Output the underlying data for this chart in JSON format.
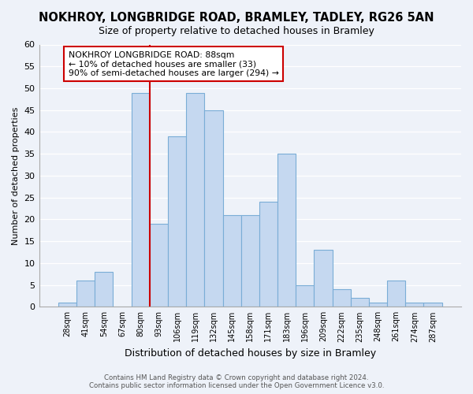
{
  "title": "NOKHROY, LONGBRIDGE ROAD, BRAMLEY, TADLEY, RG26 5AN",
  "subtitle": "Size of property relative to detached houses in Bramley",
  "xlabel": "Distribution of detached houses by size in Bramley",
  "ylabel": "Number of detached properties",
  "bar_labels": [
    "28sqm",
    "41sqm",
    "54sqm",
    "67sqm",
    "80sqm",
    "93sqm",
    "106sqm",
    "119sqm",
    "132sqm",
    "145sqm",
    "158sqm",
    "171sqm",
    "183sqm",
    "196sqm",
    "209sqm",
    "222sqm",
    "235sqm",
    "248sqm",
    "261sqm",
    "274sqm",
    "287sqm"
  ],
  "bar_values": [
    1,
    6,
    8,
    0,
    49,
    19,
    39,
    49,
    45,
    21,
    21,
    24,
    35,
    5,
    13,
    4,
    2,
    1,
    6,
    1,
    1
  ],
  "bar_color": "#c5d8f0",
  "bar_edge_color": "#7aadd6",
  "vline_x_idx": 4,
  "vline_color": "#cc0000",
  "annotation_title": "NOKHROY LONGBRIDGE ROAD: 88sqm",
  "annotation_line1": "← 10% of detached houses are smaller (33)",
  "annotation_line2": "90% of semi-detached houses are larger (294) →",
  "annotation_box_color": "#ffffff",
  "annotation_box_edge": "#cc0000",
  "ylim": [
    0,
    60
  ],
  "yticks": [
    0,
    5,
    10,
    15,
    20,
    25,
    30,
    35,
    40,
    45,
    50,
    55,
    60
  ],
  "footer1": "Contains HM Land Registry data © Crown copyright and database right 2024.",
  "footer2": "Contains public sector information licensed under the Open Government Licence v3.0.",
  "bg_color": "#eef2f9",
  "grid_color": "#ffffff",
  "title_fontsize": 10.5,
  "subtitle_fontsize": 9,
  "ylabel_fontsize": 8,
  "xlabel_fontsize": 9
}
